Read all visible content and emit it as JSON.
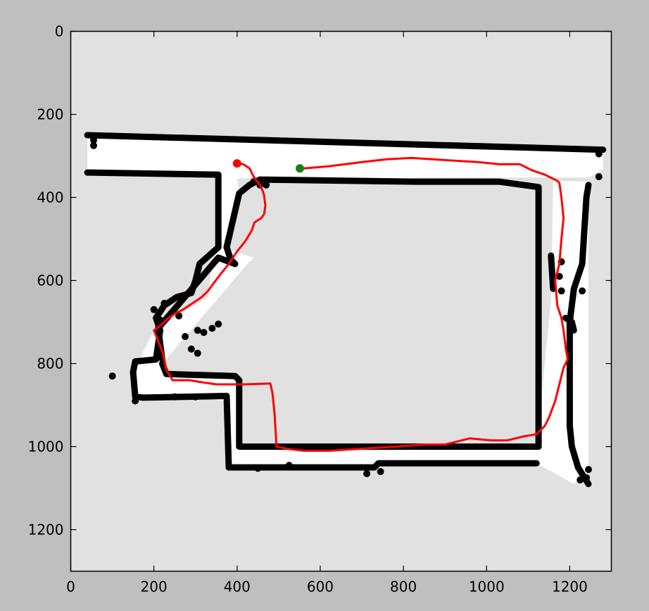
{
  "chart_data": {
    "type": "occupancy-grid-map with path",
    "xlim": [
      0,
      1300
    ],
    "ylim": [
      1300,
      0
    ],
    "y_axis_inverted": true,
    "x_ticks": [
      0,
      200,
      400,
      600,
      800,
      1000,
      1200
    ],
    "y_ticks": [
      0,
      200,
      400,
      600,
      800,
      1000,
      1200
    ],
    "x_tick_labels": [
      "0",
      "200",
      "400",
      "600",
      "800",
      "1000",
      "1200"
    ],
    "y_tick_labels": [
      "0",
      "200",
      "400",
      "600",
      "800",
      "1000",
      "1200"
    ],
    "colors": {
      "figure_background": "#bfbfbf",
      "unknown_space": "#e1e1e1",
      "free_space": "#ffffff",
      "obstacle": "#000000",
      "path": "#ff0000",
      "start_marker": "#ff0000",
      "goal_marker": "#1a7f1a"
    },
    "map": {
      "free_regions": [
        [
          [
            40,
            252
          ],
          [
            1280,
            285
          ],
          [
            1280,
            332
          ],
          [
            1245,
            352
          ],
          [
            830,
            352
          ],
          [
            770,
            360
          ],
          [
            455,
            352
          ],
          [
            400,
            355
          ],
          [
            405,
            390
          ],
          [
            365,
            520
          ],
          [
            440,
            545
          ],
          [
            425,
            560
          ],
          [
            220,
            800
          ],
          [
            230,
            825
          ],
          [
            395,
            830
          ],
          [
            410,
            1000
          ],
          [
            1120,
            1000
          ],
          [
            1155,
            650
          ],
          [
            1160,
            360
          ],
          [
            1245,
            362
          ],
          [
            1245,
            1060
          ],
          [
            1210,
            1090
          ],
          [
            1120,
            1040
          ],
          [
            385,
            1045
          ],
          [
            370,
            890
          ],
          [
            280,
            880
          ],
          [
            150,
            890
          ],
          [
            150,
            820
          ],
          [
            200,
            720
          ],
          [
            330,
            640
          ],
          [
            340,
            555
          ],
          [
            355,
            520
          ],
          [
            355,
            345
          ],
          [
            40,
            340
          ]
        ]
      ],
      "walls": [
        [
          [
            40,
            250
          ],
          [
            1280,
            285
          ]
        ],
        [
          [
            40,
            340
          ],
          [
            355,
            345
          ],
          [
            355,
            520
          ],
          [
            310,
            560
          ],
          [
            300,
            600
          ],
          [
            290,
            630
          ],
          [
            255,
            640
          ],
          [
            225,
            660
          ],
          [
            205,
            690
          ],
          [
            215,
            720
          ],
          [
            205,
            790
          ],
          [
            155,
            795
          ],
          [
            150,
            820
          ],
          [
            155,
            880
          ],
          [
            175,
            882
          ]
        ],
        [
          [
            220,
            800
          ],
          [
            230,
            825
          ],
          [
            395,
            830
          ],
          [
            405,
            840
          ],
          [
            405,
            1000
          ],
          [
            1125,
            1000
          ],
          [
            1125,
            375
          ],
          [
            1030,
            362
          ],
          [
            830,
            362
          ],
          [
            455,
            357
          ],
          [
            430,
            370
          ],
          [
            405,
            390
          ],
          [
            375,
            520
          ],
          [
            385,
            550
          ],
          [
            395,
            560
          ]
        ],
        [
          [
            395,
            560
          ],
          [
            355,
            545
          ],
          [
            210,
            715
          ],
          [
            220,
            790
          ]
        ],
        [
          [
            175,
            882
          ],
          [
            375,
            878
          ],
          [
            380,
            1050
          ],
          [
            730,
            1050
          ],
          [
            740,
            1040
          ],
          [
            1120,
            1040
          ]
        ],
        [
          [
            1245,
            1090
          ],
          [
            1220,
            1050
          ],
          [
            1205,
            1000
          ],
          [
            1200,
            950
          ],
          [
            1200,
            700
          ],
          [
            1210,
            620
          ],
          [
            1230,
            560
          ],
          [
            1235,
            480
          ],
          [
            1240,
            400
          ],
          [
            1245,
            370
          ]
        ],
        [
          [
            1190,
            690
          ],
          [
            1205,
            700
          ],
          [
            1210,
            720
          ]
        ],
        [
          [
            1155,
            540
          ],
          [
            1160,
            620
          ]
        ]
      ],
      "wall_blobs": [
        [
          1270,
          295
        ],
        [
          1270,
          350
        ],
        [
          1180,
          555
        ],
        [
          1175,
          590
        ],
        [
          1180,
          625
        ],
        [
          1225,
          1080
        ],
        [
          1240,
          1075
        ],
        [
          1230,
          625
        ],
        [
          1245,
          1055
        ],
        [
          745,
          1060
        ],
        [
          712,
          1065
        ],
        [
          525,
          1045
        ],
        [
          450,
          1052
        ],
        [
          300,
          880
        ],
        [
          250,
          880
        ],
        [
          155,
          890
        ],
        [
          100,
          830
        ],
        [
          200,
          670
        ],
        [
          215,
          695
        ],
        [
          260,
          685
        ],
        [
          275,
          735
        ],
        [
          305,
          720
        ],
        [
          320,
          725
        ],
        [
          290,
          765
        ],
        [
          305,
          775
        ],
        [
          340,
          715
        ],
        [
          355,
          705
        ],
        [
          225,
          655
        ],
        [
          55,
          262
        ],
        [
          55,
          275
        ],
        [
          455,
          370
        ],
        [
          440,
          362
        ],
        [
          470,
          370
        ]
      ]
    },
    "path": {
      "name": "",
      "x": [
        400,
        415,
        430,
        440,
        455,
        462,
        465,
        468,
        465,
        458,
        450,
        442,
        435,
        420,
        400,
        380,
        360,
        345,
        330,
        315,
        300,
        285,
        270,
        250,
        235,
        220,
        200,
        210,
        220,
        225,
        230,
        245,
        265,
        285,
        315,
        350,
        380,
        420,
        480,
        485,
        490,
        495,
        520,
        560,
        620,
        700,
        780,
        850,
        900,
        960,
        1010,
        1050,
        1090,
        1120,
        1130,
        1140,
        1150,
        1165,
        1175,
        1185,
        1195,
        1190,
        1185,
        1180,
        1170,
        1165,
        1175,
        1180,
        1185,
        1180,
        1175,
        1170,
        1160,
        1140,
        1110,
        1080,
        1030,
        980,
        900,
        820,
        760,
        700,
        660,
        620,
        560
      ],
      "y": [
        318,
        320,
        330,
        350,
        370,
        385,
        395,
        420,
        440,
        450,
        455,
        460,
        480,
        505,
        530,
        560,
        585,
        605,
        625,
        640,
        650,
        660,
        670,
        680,
        690,
        705,
        720,
        745,
        770,
        790,
        815,
        840,
        840,
        840,
        845,
        850,
        850,
        850,
        848,
        870,
        920,
        1000,
        1005,
        1010,
        1010,
        1005,
        1000,
        995,
        995,
        980,
        985,
        985,
        975,
        970,
        960,
        950,
        930,
        890,
        850,
        810,
        790,
        760,
        720,
        690,
        660,
        600,
        560,
        500,
        450,
        400,
        365,
        360,
        355,
        345,
        335,
        320,
        320,
        315,
        310,
        305,
        308,
        315,
        320,
        325,
        330
      ]
    },
    "path_pixel_cleanup": "",
    "start": {
      "x": 400,
      "y": 318
    },
    "goal": {
      "x": 551,
      "y": 330
    }
  }
}
